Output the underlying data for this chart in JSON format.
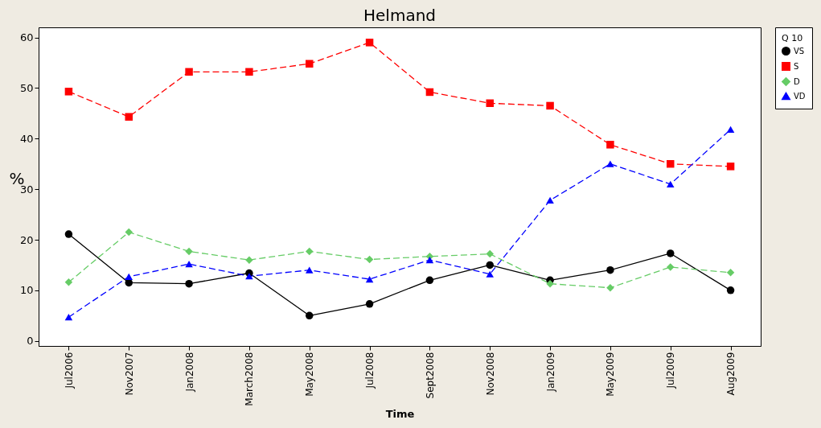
{
  "chart_data": {
    "type": "line",
    "title": "Helmand",
    "xlabel": "Time",
    "ylabel": "%",
    "legend_title": "Q 10",
    "legend": "right",
    "grid": false,
    "categories": [
      "Jul2006",
      "Nov2007",
      "Jan2008",
      "March2008",
      "May2008",
      "Jul2008",
      "Sept2008",
      "Nov2008",
      "Jan2009",
      "May2009",
      "Jul2009",
      "Aug2009"
    ],
    "ylim": [
      -1,
      62
    ],
    "yticks": [
      0,
      10,
      20,
      30,
      40,
      50,
      60
    ],
    "series": [
      {
        "name": "VS",
        "color": "#000000",
        "marker": "circle",
        "line_style": "solid",
        "values": [
          21.1,
          11.5,
          11.3,
          13.4,
          5,
          7.3,
          12,
          15,
          12,
          14,
          17.3,
          10
        ]
      },
      {
        "name": "S",
        "color": "#ff0000",
        "marker": "square",
        "line_style": "dashed",
        "values": [
          49.3,
          44.3,
          53.2,
          53.2,
          54.8,
          59,
          49.2,
          47,
          46.5,
          38.8,
          35,
          34.5
        ]
      },
      {
        "name": "D",
        "color": "#66cc66",
        "marker": "diamond",
        "line_style": "dashed",
        "values": [
          11.6,
          21.5,
          17.7,
          16,
          17.7,
          16.1,
          16.7,
          17.2,
          11.3,
          10.5,
          14.6,
          13.5
        ]
      },
      {
        "name": "VD",
        "color": "#0000ff",
        "marker": "triangle",
        "line_style": "dashed",
        "values": [
          4.7,
          12.7,
          15.2,
          12.8,
          14,
          12.2,
          16,
          13.2,
          27.8,
          35,
          31,
          41.8
        ]
      }
    ]
  }
}
